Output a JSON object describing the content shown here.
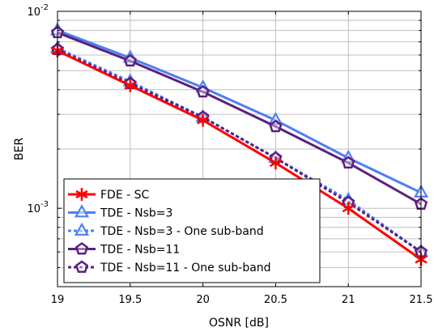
{
  "chart_data": {
    "type": "line",
    "title": "",
    "xlabel": "OSNR [dB]",
    "ylabel": "BER",
    "xlim": [
      19,
      21.5
    ],
    "ylim": [
      0.0004,
      0.01
    ],
    "yscale": "log",
    "grid": true,
    "legend_position": "bottom-left",
    "x_ticks": [
      "19",
      "19.5",
      "20",
      "20.5",
      "21",
      "21.5"
    ],
    "y_ticks": [
      {
        "base": "10",
        "exp": "-2"
      },
      {
        "base": "10",
        "exp": "-3"
      }
    ],
    "x": [
      19,
      19.5,
      20,
      20.5,
      21,
      21.5
    ],
    "series": [
      {
        "name": "FDE - SC",
        "color": "#ff0000",
        "marker": "asterisk",
        "dashed": false,
        "values": [
          0.0063,
          0.0042,
          0.0028,
          0.0017,
          0.001,
          0.00055
        ]
      },
      {
        "name": "TDE - Nsb=3",
        "color": "#4f7ff0",
        "marker": "triangle",
        "dashed": false,
        "values": [
          0.008,
          0.0058,
          0.0041,
          0.0028,
          0.0018,
          0.0012
        ]
      },
      {
        "name": "TDE - Nsb=3 - One sub-band",
        "color": "#4f7ff0",
        "marker": "triangle",
        "dashed": true,
        "values": [
          0.0065,
          0.0044,
          0.0029,
          0.0018,
          0.0011,
          0.0006
        ]
      },
      {
        "name": "TDE - Nsb=11",
        "color": "#5c1f80",
        "marker": "pentagon",
        "dashed": false,
        "values": [
          0.0078,
          0.0056,
          0.0039,
          0.0026,
          0.0017,
          0.00105
        ]
      },
      {
        "name": "TDE - Nsb=11 - One sub-band",
        "color": "#5c1f80",
        "marker": "pentagon",
        "dashed": true,
        "values": [
          0.0064,
          0.0043,
          0.0029,
          0.0018,
          0.00107,
          0.0006
        ]
      }
    ]
  }
}
